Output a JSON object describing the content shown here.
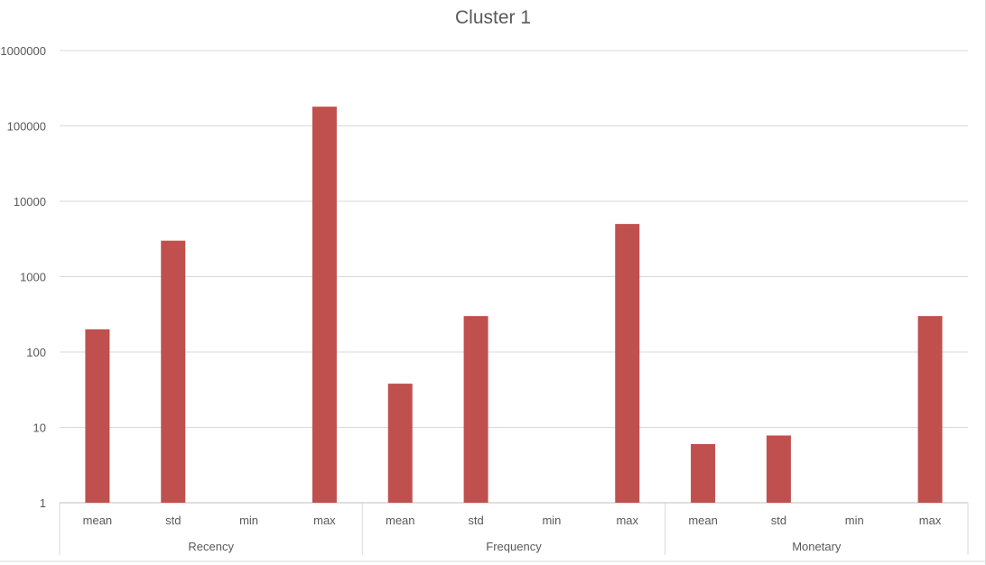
{
  "chart_data": {
    "type": "bar",
    "title": "Cluster 1",
    "y_scale": "log",
    "ylim": [
      1,
      1000000
    ],
    "y_ticks": [
      "1",
      "10",
      "100",
      "1000",
      "10000",
      "100000",
      "1000000"
    ],
    "groups": [
      {
        "name": "Recency",
        "categories": [
          "mean",
          "std",
          "min",
          "max"
        ],
        "values": [
          200,
          3000,
          1,
          180000
        ]
      },
      {
        "name": "Frequency",
        "categories": [
          "mean",
          "std",
          "min",
          "max"
        ],
        "values": [
          38,
          300,
          1,
          5000
        ]
      },
      {
        "name": "Monetary",
        "categories": [
          "mean",
          "std",
          "min",
          "max"
        ],
        "values": [
          6,
          7.8,
          1,
          300
        ]
      }
    ],
    "grid": true,
    "legend": "none",
    "bar_color": "#c0504d"
  }
}
